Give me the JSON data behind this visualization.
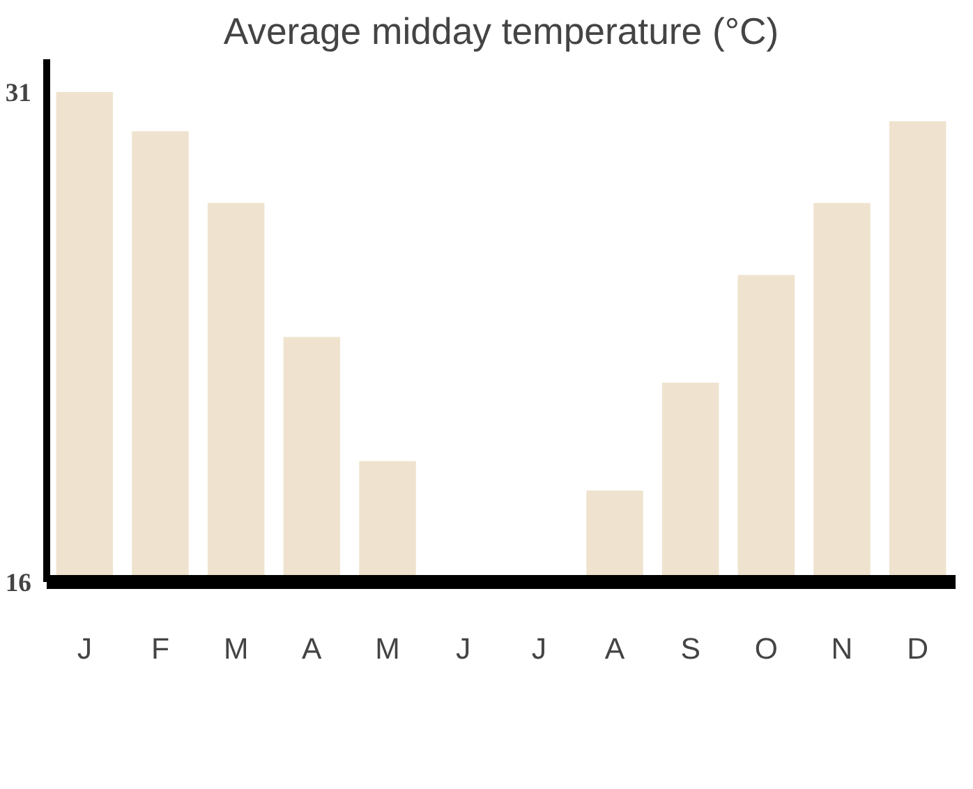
{
  "chart_data": {
    "type": "bar",
    "title": "Average midday temperature (°C)",
    "categories": [
      "J",
      "F",
      "M",
      "A",
      "M",
      "J",
      "J",
      "A",
      "S",
      "O",
      "N",
      "D"
    ],
    "values": [
      31,
      29.8,
      27.6,
      23.5,
      19.7,
      null,
      null,
      18.8,
      22.1,
      25.4,
      27.6,
      30.1
    ],
    "color": "#efe3cf",
    "ylim": [
      16,
      32
    ],
    "yticks": [
      16,
      31
    ]
  }
}
